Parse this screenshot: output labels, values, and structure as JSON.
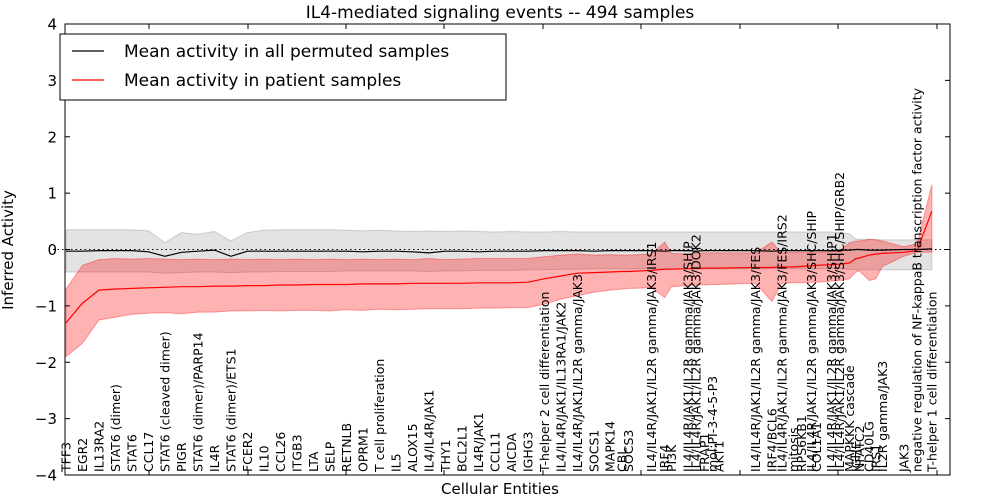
{
  "chart_data": {
    "type": "line",
    "title": "IL4-mediated signaling events -- 494 samples",
    "xlabel": "Cellular Entities",
    "ylabel": "Inferred Activity",
    "ylim": [
      -4,
      4
    ],
    "xlim": [
      -0.06,
      53.6
    ],
    "yticks": [
      -4,
      -3,
      -2,
      -1,
      0,
      1,
      2,
      3,
      4
    ],
    "ytick_labels": [
      "−4",
      "−3",
      "−2",
      "−1",
      "0",
      "1",
      "2",
      "3",
      "4"
    ],
    "grid": false,
    "reference_line": {
      "y": 0,
      "style": "dotted"
    },
    "legend": {
      "position": "top-left",
      "entries": [
        {
          "label": "Mean activity in all permuted samples",
          "color": "#000000"
        },
        {
          "label": "Mean activity in patient samples",
          "color": "#ff0000"
        }
      ]
    },
    "entities": [
      {
        "label": "TFF3",
        "x": 0
      },
      {
        "label": "EGR2",
        "x": 1
      },
      {
        "label": "IL13RA2",
        "x": 2
      },
      {
        "label": "STAT6 (dimer)",
        "x": 3
      },
      {
        "label": "STAT6",
        "x": 4
      },
      {
        "label": "CCL17",
        "x": 5
      },
      {
        "label": "STAT6 (cleaved dimer)",
        "x": 6
      },
      {
        "label": "PIGR",
        "x": 7
      },
      {
        "label": "STAT6 (dimer)/PARP14",
        "x": 8
      },
      {
        "label": "IL4R",
        "x": 9
      },
      {
        "label": "STAT6 (dimer)/ETS1",
        "x": 10
      },
      {
        "label": "FCER2",
        "x": 11
      },
      {
        "label": "IL10",
        "x": 12
      },
      {
        "label": "CCL26",
        "x": 13
      },
      {
        "label": "ITGB3",
        "x": 14
      },
      {
        "label": "LTA",
        "x": 15
      },
      {
        "label": "SELP",
        "x": 16
      },
      {
        "label": "RETNLB",
        "x": 17
      },
      {
        "label": "OPRM1",
        "x": 18
      },
      {
        "label": "T cell proliferation",
        "x": 19
      },
      {
        "label": "IL5",
        "x": 20
      },
      {
        "label": "ALOX15",
        "x": 21
      },
      {
        "label": "IL4/IL4R/JAK1",
        "x": 22
      },
      {
        "label": "THY1",
        "x": 23
      },
      {
        "label": "BCL2L1",
        "x": 24
      },
      {
        "label": "IL4R/JAK1",
        "x": 25
      },
      {
        "label": "CCL11",
        "x": 26
      },
      {
        "label": "AICDA",
        "x": 27
      },
      {
        "label": "IGHG3",
        "x": 28
      },
      {
        "label": "T-helper 2 cell differentiation",
        "x": 29
      },
      {
        "label": "IL4/IL4R/JAK1/IL13RA1/JAK2",
        "x": 30
      },
      {
        "label": "IL4/IL4R/JAK1/IL2R gamma/JAK3",
        "x": 31
      },
      {
        "label": "SOCS1",
        "x": 32
      },
      {
        "label": "MAPK14",
        "x": 33
      },
      {
        "label": "CBL",
        "x": 33.7
      },
      {
        "label": "SOCS3",
        "x": 34.1
      },
      {
        "label": "IL4/IL4R/JAK1/IL2R gamma/JAK3/IRS1",
        "x": 35.5
      },
      {
        "label": "IRF4",
        "x": 36.3
      },
      {
        "label": "PI3K",
        "x": 36.7
      },
      {
        "label": "IL4/IL4R/JAK1/IL2R gamma/JAK3/SHIP",
        "x": 37.7
      },
      {
        "label": "IL4/IL4R/JAK1/IL2R gamma/JAK3/DOK2",
        "x": 38.2
      },
      {
        "label": "FRAP1",
        "x": 38.7
      },
      {
        "label": "mol:PI-3-4-5-P3",
        "x": 39.2
      },
      {
        "label": "AKT1",
        "x": 39.6
      },
      {
        "label": "IL4/IL4R/JAK1/IL2R gamma/JAK3/FES",
        "x": 41.8
      },
      {
        "label": "IRF4/BCL6",
        "x": 42.8
      },
      {
        "label": "IL4/IL4R/JAK1/IL2R gamma/JAK3/FES/IRS2",
        "x": 43.4
      },
      {
        "label": "mitosis",
        "x": 44.1
      },
      {
        "label": "RPS6KB1",
        "x": 44.6
      },
      {
        "label": "IL4/IL4R/JAK1/IL2R gamma/JAK3/SHC/SHIP",
        "x": 45.2
      },
      {
        "label": "COL1A1",
        "x": 45.5
      },
      {
        "label": "IL4/IL4R/JAK1/IL2R gamma/JAK3/SHIP1",
        "x": 46.4
      },
      {
        "label": "IL4/IL4R/JAK1/IL2R gamma/JAK3/SHC/SHIP/GRB2",
        "x": 46.9
      },
      {
        "label": "MAPKKK cascade",
        "x": 47.5
      },
      {
        "label": "IGHE",
        "x": 47.9
      },
      {
        "label": "NFATC2",
        "x": 48.1
      },
      {
        "label": "CD40LG",
        "x": 48.7
      },
      {
        "label": "IRS1",
        "x": 49.1
      },
      {
        "label": "IL2R gamma/JAK3",
        "x": 49.5
      },
      {
        "label": "JAK3",
        "x": 50.8
      },
      {
        "label": "negative regulation of NF-kappaB transcription factor activity",
        "x": 51.6
      },
      {
        "label": "T-helper 1 cell differentiation",
        "x": 52.5
      }
    ],
    "series": [
      {
        "name": "Mean activity in all permuted samples",
        "color": "#000000",
        "band_color": "#808080",
        "values": [
          -0.03,
          -0.03,
          -0.02,
          -0.02,
          -0.02,
          -0.04,
          -0.12,
          -0.05,
          -0.03,
          -0.01,
          -0.12,
          -0.03,
          -0.03,
          -0.03,
          -0.03,
          -0.03,
          -0.03,
          -0.03,
          -0.04,
          -0.03,
          -0.03,
          -0.04,
          -0.06,
          -0.03,
          -0.03,
          -0.04,
          -0.03,
          -0.03,
          -0.03,
          -0.02,
          -0.02,
          -0.02,
          -0.03,
          -0.02,
          -0.02,
          -0.02,
          -0.02,
          -0.03,
          -0.02,
          -0.02,
          -0.03,
          -0.02,
          -0.02,
          -0.02,
          -0.02,
          -0.03,
          -0.02,
          -0.02,
          -0.02,
          -0.02,
          -0.02,
          -0.02,
          -0.01,
          -0.01,
          0.0,
          0.0,
          -0.01,
          -0.01,
          -0.01,
          0.0,
          0.0,
          0.01
        ],
        "band_low": [
          -0.4,
          -0.4,
          -0.4,
          -0.4,
          -0.4,
          -0.4,
          -0.42,
          -0.41,
          -0.4,
          -0.4,
          -0.41,
          -0.4,
          -0.4,
          -0.39,
          -0.39,
          -0.39,
          -0.39,
          -0.38,
          -0.38,
          -0.38,
          -0.38,
          -0.38,
          -0.39,
          -0.38,
          -0.38,
          -0.37,
          -0.37,
          -0.37,
          -0.36,
          -0.36,
          -0.35,
          -0.35,
          -0.34,
          -0.34,
          -0.34,
          -0.34,
          -0.34,
          -0.34,
          -0.34,
          -0.34,
          -0.34,
          -0.34,
          -0.34,
          -0.34,
          -0.34,
          -0.34,
          -0.34,
          -0.34,
          -0.34,
          -0.34,
          -0.34,
          -0.34,
          -0.34,
          -0.35,
          -0.36,
          -0.36,
          -0.36,
          -0.36,
          -0.36,
          -0.36,
          -0.36,
          -0.36
        ],
        "band_high": [
          0.35,
          0.35,
          0.35,
          0.35,
          0.35,
          0.33,
          0.12,
          0.3,
          0.27,
          0.32,
          0.15,
          0.3,
          0.34,
          0.35,
          0.35,
          0.35,
          0.35,
          0.34,
          0.33,
          0.34,
          0.33,
          0.32,
          0.33,
          0.32,
          0.33,
          0.32,
          0.31,
          0.32,
          0.31,
          0.31,
          0.32,
          0.31,
          0.31,
          0.31,
          0.31,
          0.31,
          0.31,
          0.31,
          0.31,
          0.31,
          0.31,
          0.31,
          0.31,
          0.31,
          0.31,
          0.31,
          0.31,
          0.31,
          0.31,
          0.31,
          0.31,
          0.31,
          0.3,
          0.28,
          0.18,
          0.18,
          0.18,
          0.18,
          0.17,
          0.17,
          0.17,
          0.17
        ]
      },
      {
        "name": "Mean activity in patient samples",
        "color": "#ff0000",
        "band_color": "#ff0000",
        "values": [
          -1.3,
          -0.95,
          -0.72,
          -0.7,
          -0.69,
          -0.68,
          -0.67,
          -0.66,
          -0.66,
          -0.65,
          -0.65,
          -0.64,
          -0.64,
          -0.63,
          -0.63,
          -0.62,
          -0.62,
          -0.62,
          -0.61,
          -0.61,
          -0.61,
          -0.6,
          -0.6,
          -0.6,
          -0.6,
          -0.59,
          -0.59,
          -0.59,
          -0.58,
          -0.52,
          -0.47,
          -0.42,
          -0.41,
          -0.4,
          -0.39,
          -0.39,
          -0.37,
          -0.35,
          -0.35,
          -0.34,
          -0.34,
          -0.33,
          -0.33,
          -0.33,
          -0.32,
          -0.32,
          -0.31,
          -0.31,
          -0.3,
          -0.29,
          -0.28,
          -0.27,
          -0.26,
          -0.24,
          -0.16,
          -0.15,
          -0.1,
          -0.08,
          -0.07,
          -0.05,
          -0.02,
          0.68
        ],
        "band_low": [
          -1.9,
          -1.66,
          -1.25,
          -1.2,
          -1.15,
          -1.13,
          -1.12,
          -1.14,
          -1.11,
          -1.11,
          -1.09,
          -1.09,
          -1.08,
          -1.09,
          -1.08,
          -1.08,
          -1.09,
          -1.07,
          -1.08,
          -1.06,
          -1.07,
          -1.06,
          -1.05,
          -1.05,
          -1.05,
          -1.04,
          -1.04,
          -1.03,
          -1.03,
          -0.97,
          -0.88,
          -0.82,
          -0.76,
          -0.72,
          -0.7,
          -0.69,
          -0.68,
          -0.85,
          -0.66,
          -0.64,
          -0.63,
          -0.63,
          -0.62,
          -0.62,
          -0.6,
          -0.92,
          -0.6,
          -0.59,
          -0.59,
          -0.58,
          -0.58,
          -0.56,
          -0.55,
          -0.52,
          -0.4,
          -0.38,
          -0.55,
          -0.52,
          -0.3,
          -0.12,
          -0.05,
          -0.05
        ],
        "band_high": [
          -0.7,
          -0.28,
          -0.18,
          -0.16,
          -0.17,
          -0.16,
          -0.17,
          -0.18,
          -0.17,
          -0.18,
          -0.17,
          -0.18,
          -0.17,
          -0.18,
          -0.17,
          -0.18,
          -0.17,
          -0.18,
          -0.17,
          -0.18,
          -0.17,
          -0.18,
          -0.16,
          -0.18,
          -0.17,
          -0.16,
          -0.16,
          -0.16,
          -0.16,
          -0.13,
          -0.1,
          -0.08,
          -0.1,
          -0.09,
          -0.1,
          -0.1,
          -0.08,
          0.13,
          -0.07,
          -0.08,
          -0.07,
          -0.06,
          -0.06,
          -0.06,
          -0.06,
          0.13,
          -0.06,
          -0.05,
          -0.05,
          -0.05,
          -0.05,
          -0.04,
          -0.03,
          0.12,
          0.15,
          0.15,
          0.18,
          0.17,
          0.15,
          0.05,
          0.1,
          1.15
        ]
      }
    ]
  }
}
